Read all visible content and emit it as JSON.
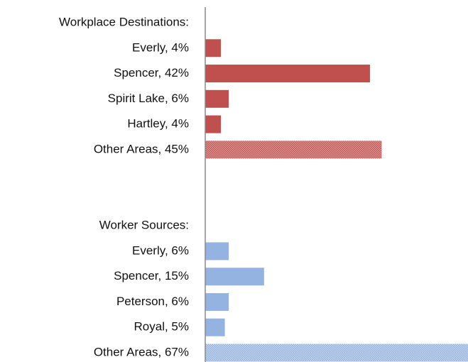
{
  "chart_data": {
    "type": "bar",
    "orientation": "horizontal",
    "categories": [
      "Workplace Destinations:",
      "Everly, 4%",
      "Spencer, 42%",
      "Spirit Lake, 6%",
      "Hartley, 4%",
      "Other Areas, 45%",
      null,
      null,
      "Worker Sources:",
      "Everly, 6%",
      "Spencer, 15%",
      "Peterson, 6%",
      "Royal, 5%",
      "Other Areas, 67%"
    ],
    "values": [
      null,
      4,
      42,
      6,
      4,
      45,
      null,
      null,
      null,
      6,
      15,
      6,
      5,
      67
    ],
    "colors": [
      null,
      "#c0504d",
      "#c0504d",
      "#c0504d",
      "#c0504d",
      "#c0504d",
      null,
      null,
      null,
      "#95b3e0",
      "#95b3e0",
      "#95b3e0",
      "#95b3e0",
      "#95b3e0"
    ],
    "hatched": [
      false,
      false,
      false,
      false,
      false,
      true,
      false,
      false,
      false,
      false,
      false,
      false,
      false,
      true
    ],
    "xlim": [
      0,
      67
    ]
  }
}
